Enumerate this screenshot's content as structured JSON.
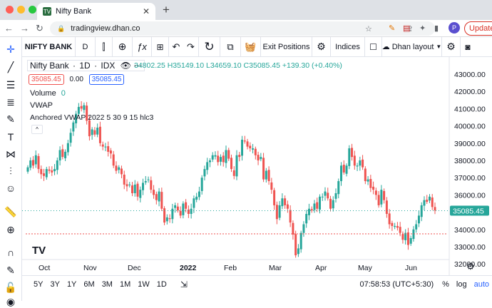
{
  "browser": {
    "tab_title": "Nifty Bank",
    "url": "tradingview.dhan.co",
    "update_label": "Update",
    "avatar_letter": "P"
  },
  "toolbar": {
    "symbol": "NIFTY BANK",
    "interval": "D",
    "exit_positions": "Exit Positions",
    "indices": "Indices",
    "layout": "Dhan layout"
  },
  "legend": {
    "title": "Nifty Bank",
    "interval": "1D",
    "exchange": "IDX",
    "ohlc": "34802.25 H35149.10 L34659.10 C35085.45 +139.30 (+0.40%)",
    "bid": "35085.45",
    "spread": "0.00",
    "ask": "35085.45",
    "volume_label": "Volume",
    "volume_value": "0",
    "vwap_label": "VWAP",
    "anchored_vwap": "Anchored VWAP 2022 5 30 9 15 hlc3"
  },
  "price_axis": {
    "labels": [
      "43000.00",
      "42000.00",
      "41000.00",
      "40000.00",
      "39000.00",
      "38000.00",
      "37000.00",
      "36000.00",
      "34000.00",
      "33000.00",
      "32000.00"
    ],
    "current_price": "35085.45"
  },
  "time_axis": {
    "labels": [
      "Oct",
      "Nov",
      "Dec",
      "2022",
      "Feb",
      "Mar",
      "Apr",
      "May",
      "Jun"
    ]
  },
  "bottom": {
    "ranges": [
      "5Y",
      "3Y",
      "1Y",
      "6M",
      "3M",
      "1M",
      "1W",
      "1D"
    ],
    "time": "07:58:53 (UTC+5:30)",
    "percent": "%",
    "log": "log",
    "auto": "auto"
  },
  "colors": {
    "up": "#26a69a",
    "down": "#ef5350",
    "accent": "#2962ff"
  },
  "chart_data": {
    "type": "candlestick",
    "title": "Nifty Bank 1D",
    "ylim": [
      31500,
      43500
    ],
    "current": 35085.45,
    "closes": [
      37600,
      38000,
      37700,
      38300,
      37500,
      37200,
      37100,
      37500,
      37400,
      37300,
      37500,
      38000,
      38600,
      38200,
      38500,
      39000,
      39600,
      40200,
      40700,
      41100,
      41000,
      41200,
      40300,
      39400,
      39800,
      39500,
      39900,
      39000,
      38800,
      38800,
      38500,
      38400,
      37700,
      37400,
      37600,
      37200,
      36600,
      36500,
      36600,
      36100,
      36600,
      35900,
      36300,
      36700,
      36800,
      36900,
      36300,
      36000,
      35700,
      36200,
      35200,
      34400,
      34700,
      34600,
      35200,
      35400,
      35100,
      34800,
      35500,
      35200,
      34900,
      35200,
      35800,
      35900,
      36200,
      37000,
      37500,
      37900,
      38000,
      38300,
      38300,
      37900,
      38200,
      37900,
      38600,
      38100,
      37500,
      37100,
      38300,
      38200,
      39200,
      39100,
      38800,
      38700,
      38700,
      38300,
      38000,
      38200,
      36900,
      37400,
      36800,
      36300,
      35400,
      34600,
      35400,
      35800,
      35400,
      35200,
      34400,
      33700,
      32500,
      32900,
      33800,
      34300,
      34900,
      35200,
      35100,
      35500,
      35200,
      35900,
      35900,
      36200,
      35800,
      35200,
      35700,
      36100,
      36800,
      37700,
      37300,
      37700,
      38700,
      38200,
      37700,
      37700,
      38000,
      37600,
      36800,
      36900,
      36400,
      36300,
      36000,
      35400,
      36300,
      35700,
      34900,
      34300,
      34200,
      34200,
      34100,
      33800,
      33400,
      33800,
      33100,
      33500,
      34000,
      34300,
      34800,
      35400,
      35700,
      35600,
      35900,
      35300,
      35100
    ]
  }
}
